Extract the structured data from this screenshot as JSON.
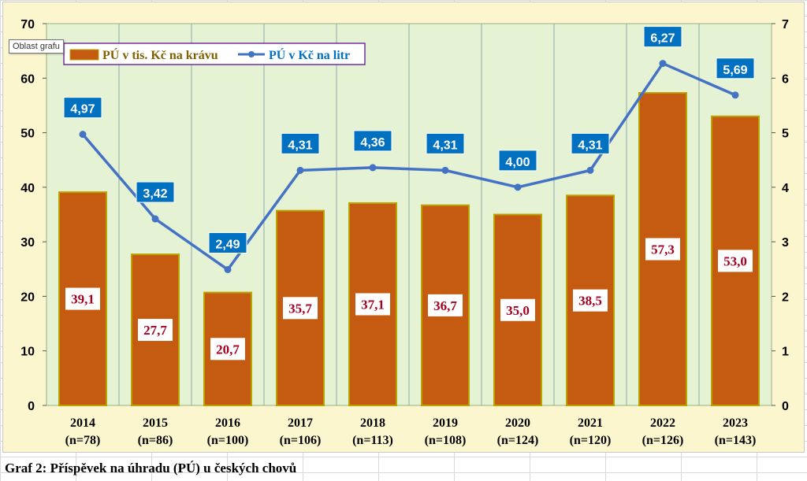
{
  "tooltip": "Oblast grafu",
  "caption": "Graf 2: Příspěvek na úhradu (PÚ) u českých chovů",
  "colors": {
    "plot_bg": "#e6f2d4",
    "bar_fill": "#c55a11",
    "bar_border": "#b8a300",
    "line": "#4472c4",
    "line_label_bg": "#0070c0",
    "bar_label_text": "#a50021",
    "legend_text": "#806000",
    "legend_border": "#7030a0"
  },
  "chart_data": {
    "type": "bar+line",
    "categories": [
      "2014\n(n=78)",
      "2015\n(n=86)",
      "2016\n(n=100)",
      "2017\n(n=106)",
      "2018\n(n=113)",
      "2019\n(n=108)",
      "2020\n(n=124)",
      "2021\n(n=120)",
      "2022\n(n=126)",
      "2023\n(n=143)"
    ],
    "category_years": [
      "2014",
      "2015",
      "2016",
      "2017",
      "2018",
      "2019",
      "2020",
      "2021",
      "2022",
      "2023"
    ],
    "category_n": [
      "(n=78)",
      "(n=86)",
      "(n=100)",
      "(n=106)",
      "(n=113)",
      "(n=108)",
      "(n=124)",
      "(n=120)",
      "(n=126)",
      "(n=143)"
    ],
    "series": [
      {
        "name": "PÚ v tis. Kč na krávu",
        "type": "bar",
        "axis": "left",
        "values": [
          39.1,
          27.7,
          20.7,
          35.7,
          37.1,
          36.7,
          35.0,
          38.5,
          57.3,
          53.0
        ],
        "labels": [
          "39,1",
          "27,7",
          "20,7",
          "35,7",
          "37,1",
          "36,7",
          "35,0",
          "38,5",
          "57,3",
          "53,0"
        ]
      },
      {
        "name": "PÚ v Kč na litr",
        "type": "line",
        "axis": "right",
        "values": [
          4.97,
          3.42,
          2.49,
          4.31,
          4.36,
          4.31,
          4.0,
          4.31,
          6.27,
          5.69
        ],
        "labels": [
          "4,97",
          "3,42",
          "2,49",
          "4,31",
          "4,36",
          "4,31",
          "4,00",
          "4,31",
          "6,27",
          "5,69"
        ]
      }
    ],
    "y_left": {
      "min": 0,
      "max": 70,
      "ticks": [
        "0",
        "10",
        "20",
        "30",
        "40",
        "50",
        "60",
        "70"
      ]
    },
    "y_right": {
      "min": 0,
      "max": 7,
      "ticks": [
        "0",
        "1",
        "2",
        "3",
        "4",
        "5",
        "6",
        "7"
      ]
    },
    "grid": "vertical",
    "legend_position": "top-left"
  }
}
